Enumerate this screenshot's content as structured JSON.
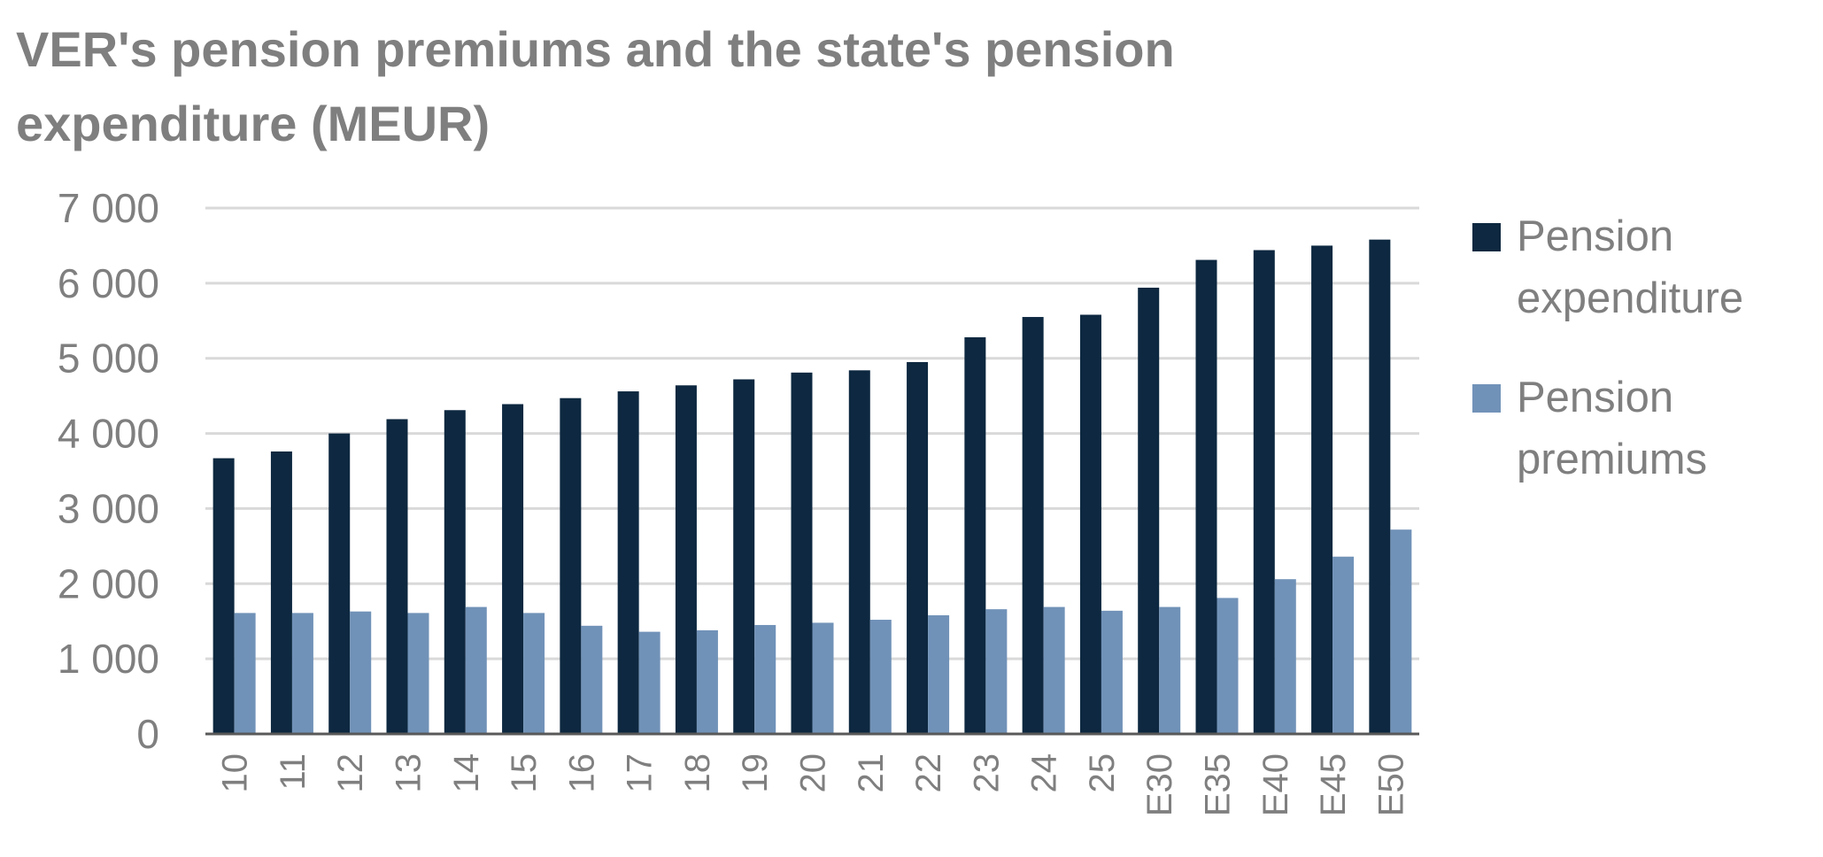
{
  "chart_data": {
    "type": "bar",
    "title": "VER's pension premiums and the state's pension expenditure (MEUR)",
    "categories": [
      "10",
      "11",
      "12",
      "13",
      "14",
      "15",
      "16",
      "17",
      "18",
      "19",
      "20",
      "21",
      "22",
      "23",
      "24",
      "25",
      "E30",
      "E35",
      "E40",
      "E45",
      "E50"
    ],
    "series": [
      {
        "name": "Pension expenditure",
        "color": "#0d2840",
        "values": [
          3670,
          3760,
          4000,
          4190,
          4310,
          4390,
          4470,
          4560,
          4640,
          4720,
          4810,
          4840,
          4950,
          5280,
          5550,
          5580,
          5940,
          6310,
          6440,
          6500,
          6580
        ]
      },
      {
        "name": "Pension premiums",
        "color": "#7192b8",
        "values": [
          1610,
          1610,
          1630,
          1610,
          1690,
          1610,
          1440,
          1360,
          1380,
          1450,
          1480,
          1520,
          1580,
          1660,
          1690,
          1640,
          1690,
          1810,
          2060,
          2360,
          2720
        ]
      }
    ],
    "ylim": [
      0,
      7000
    ],
    "yticks": [
      0,
      {
        "value": 1000,
        "label": "1 000"
      },
      {
        "value": 2000,
        "label": "2 000"
      },
      {
        "value": 3000,
        "label": "3 000"
      },
      {
        "value": 4000,
        "label": "4 000"
      },
      {
        "value": 5000,
        "label": "5 000"
      },
      {
        "value": 6000,
        "label": "6 000"
      },
      {
        "value": 7000,
        "label": "7 000"
      }
    ],
    "grid": true,
    "legend": "right"
  }
}
